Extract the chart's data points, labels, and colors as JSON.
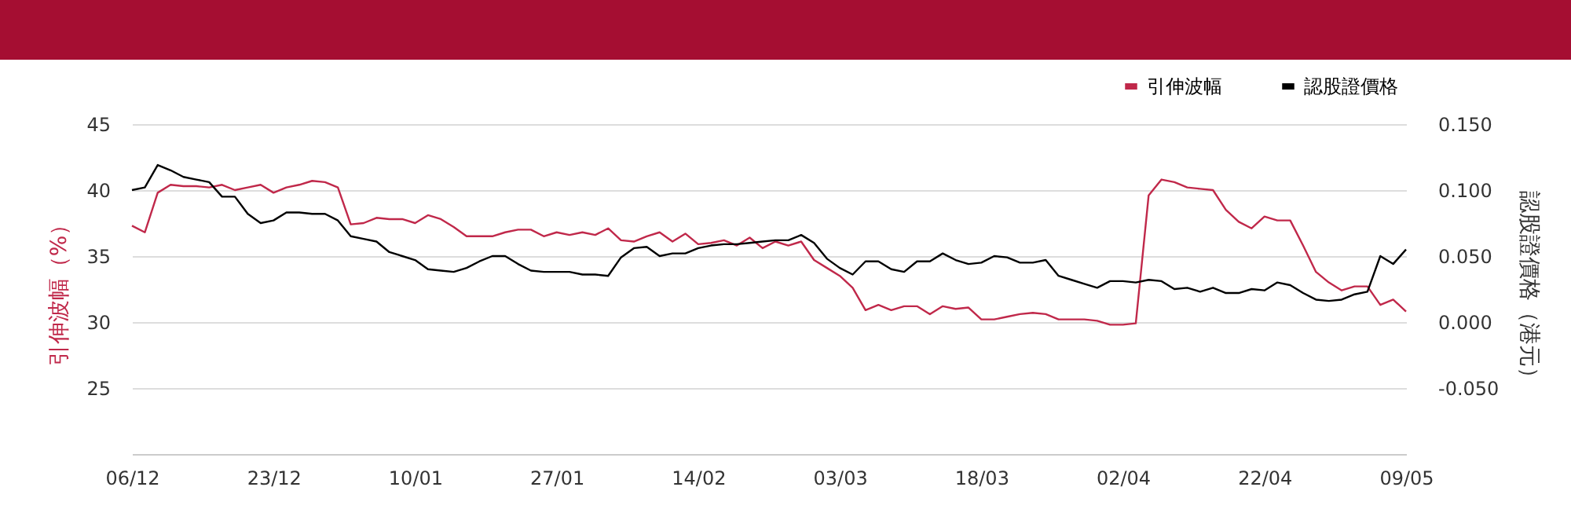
{
  "chart_data": {
    "type": "line",
    "ylabel": "引伸波幅（%）",
    "y2label": "認股證價格（港元）",
    "categories": [
      "06/12",
      null,
      null,
      null,
      null,
      null,
      null,
      null,
      null,
      null,
      null,
      "23/12",
      null,
      null,
      null,
      null,
      null,
      null,
      null,
      null,
      null,
      null,
      "10/01",
      null,
      null,
      null,
      null,
      null,
      null,
      null,
      null,
      null,
      null,
      "27/01",
      null,
      null,
      null,
      null,
      null,
      null,
      null,
      null,
      null,
      null,
      "14/02",
      null,
      null,
      null,
      null,
      null,
      null,
      null,
      null,
      null,
      null,
      "03/03",
      null,
      null,
      null,
      null,
      null,
      null,
      null,
      null,
      null,
      null,
      "18/03",
      null,
      null,
      null,
      null,
      null,
      null,
      null,
      null,
      null,
      null,
      "02/04",
      null,
      null,
      null,
      null,
      null,
      null,
      null,
      null,
      null,
      null,
      "22/04",
      null,
      null,
      null,
      null,
      null,
      null,
      null,
      null,
      null,
      null,
      "09/05"
    ],
    "series": [
      {
        "name": "引伸波幅",
        "color": "#c0284a",
        "values": [
          37.3,
          36.8,
          39.8,
          40.4,
          40.3,
          40.3,
          40.2,
          40.4,
          40.0,
          40.2,
          40.4,
          39.8,
          40.2,
          40.4,
          40.7,
          40.6,
          40.2,
          37.4,
          37.5,
          37.9,
          37.8,
          37.8,
          37.5,
          38.1,
          37.8,
          37.2,
          36.5,
          36.5,
          36.5,
          36.8,
          37.0,
          37.0,
          36.5,
          36.8,
          36.6,
          36.8,
          36.6,
          37.1,
          36.2,
          36.1,
          36.5,
          36.8,
          36.1,
          36.7,
          35.9,
          36.0,
          36.2,
          35.8,
          36.4,
          35.6,
          36.1,
          35.8,
          36.1,
          34.7,
          34.1,
          33.5,
          32.6,
          30.9,
          31.3,
          30.9,
          31.2,
          31.2,
          30.6,
          31.2,
          31.0,
          31.1,
          30.2,
          30.2,
          30.4,
          30.6,
          30.7,
          30.6,
          30.2,
          30.2,
          30.2,
          30.1,
          29.8,
          29.8,
          29.9,
          39.6,
          40.8,
          40.6,
          40.2,
          40.1,
          40.0,
          38.5,
          37.6,
          37.1,
          38.0,
          37.7,
          37.7,
          35.8,
          33.8,
          33.0,
          32.4,
          32.7,
          32.7,
          31.3,
          31.7,
          30.8
        ]
      },
      {
        "name": "認股證價格",
        "color": "#000000",
        "axis": "y2",
        "values": [
          0.1,
          0.102,
          0.119,
          0.115,
          0.11,
          0.108,
          0.106,
          0.095,
          0.095,
          0.082,
          0.075,
          0.077,
          0.083,
          0.083,
          0.082,
          0.082,
          0.077,
          0.065,
          0.063,
          0.061,
          0.053,
          0.05,
          0.047,
          0.04,
          0.039,
          0.038,
          0.041,
          0.046,
          0.05,
          0.05,
          0.044,
          0.039,
          0.038,
          0.038,
          0.038,
          0.036,
          0.036,
          0.035,
          0.049,
          0.056,
          0.057,
          0.05,
          0.052,
          0.052,
          0.056,
          0.058,
          0.059,
          0.059,
          0.06,
          0.061,
          0.062,
          0.062,
          0.066,
          0.06,
          0.048,
          0.041,
          0.036,
          0.046,
          0.046,
          0.04,
          0.038,
          0.046,
          0.046,
          0.052,
          0.047,
          0.044,
          0.045,
          0.05,
          0.049,
          0.045,
          0.045,
          0.047,
          0.035,
          0.032,
          0.029,
          0.026,
          0.031,
          0.031,
          0.03,
          0.032,
          0.031,
          0.025,
          0.026,
          0.023,
          0.026,
          0.022,
          0.022,
          0.025,
          0.024,
          0.03,
          0.028,
          0.022,
          0.017,
          0.016,
          0.017,
          0.021,
          0.023,
          0.05,
          0.044,
          0.055
        ]
      }
    ],
    "ylim": [
      20,
      45
    ],
    "yticks": [
      {
        "value": 20,
        "label": null
      },
      25,
      30,
      35,
      40,
      45
    ],
    "y2lim": [
      -0.1,
      0.15
    ],
    "y2ticks": [
      {
        "value": -0.1,
        "label": null
      },
      {
        "value": -0.05,
        "label": "-0.050"
      },
      {
        "value": 0,
        "label": "0.000"
      },
      {
        "value": 0.05,
        "label": "0.050"
      },
      {
        "value": 0.1,
        "label": "0.100"
      },
      {
        "value": 0.15,
        "label": "0.150"
      }
    ],
    "grid": "y",
    "legend": "top right",
    "marker": "none",
    "line_style": "solid"
  }
}
